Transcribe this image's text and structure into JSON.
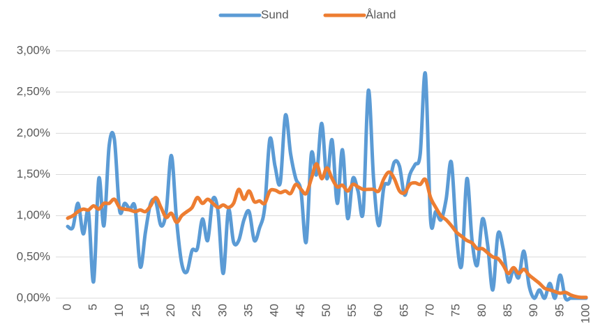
{
  "chart_data": {
    "type": "line",
    "x": [
      0,
      1,
      2,
      3,
      4,
      5,
      6,
      7,
      8,
      9,
      10,
      11,
      12,
      13,
      14,
      15,
      16,
      17,
      18,
      19,
      20,
      21,
      22,
      23,
      24,
      25,
      26,
      27,
      28,
      29,
      30,
      31,
      32,
      33,
      34,
      35,
      36,
      37,
      38,
      39,
      40,
      41,
      42,
      43,
      44,
      45,
      46,
      47,
      48,
      49,
      50,
      51,
      52,
      53,
      54,
      55,
      56,
      57,
      58,
      59,
      60,
      61,
      62,
      63,
      64,
      65,
      66,
      67,
      68,
      69,
      70,
      71,
      72,
      73,
      74,
      75,
      76,
      77,
      78,
      79,
      80,
      81,
      82,
      83,
      84,
      85,
      86,
      87,
      88,
      89,
      90,
      91,
      92,
      93,
      94,
      95,
      96,
      97,
      98,
      99,
      100
    ],
    "series": [
      {
        "name": "Sund",
        "color": "#5b9bd5",
        "values": [
          0.87,
          0.86,
          1.15,
          0.78,
          1.05,
          0.2,
          1.45,
          0.88,
          1.85,
          1.93,
          1.07,
          1.15,
          1.08,
          1.1,
          0.38,
          0.8,
          1.15,
          1.17,
          0.88,
          1.05,
          1.73,
          0.95,
          0.42,
          0.32,
          0.58,
          0.6,
          0.96,
          0.7,
          1.2,
          1.05,
          0.3,
          1.07,
          0.68,
          0.7,
          0.95,
          1.05,
          0.7,
          0.85,
          1.1,
          1.93,
          1.6,
          1.4,
          2.22,
          1.75,
          1.45,
          1.3,
          0.68,
          1.75,
          1.5,
          2.12,
          1.45,
          1.92,
          1.15,
          1.8,
          0.97,
          1.45,
          1.3,
          1.05,
          2.52,
          1.45,
          0.88,
          1.35,
          1.4,
          1.65,
          1.6,
          1.25,
          1.5,
          1.62,
          1.75,
          2.72,
          0.95,
          1.05,
          0.95,
          1.2,
          1.65,
          0.75,
          0.4,
          1.45,
          0.7,
          0.4,
          0.96,
          0.65,
          0.1,
          0.78,
          0.6,
          0.2,
          0.35,
          0.25,
          0.57,
          0.15,
          0.0,
          0.1,
          0.0,
          0.18,
          0.0,
          0.28,
          0.0,
          0.0,
          0.0,
          0.0,
          0.0
        ]
      },
      {
        "name": "Åland",
        "color": "#ed7d31",
        "values": [
          0.97,
          1.0,
          1.05,
          1.08,
          1.07,
          1.12,
          1.08,
          1.15,
          1.15,
          1.2,
          1.1,
          1.08,
          1.07,
          1.05,
          1.07,
          1.05,
          1.12,
          1.22,
          1.1,
          0.98,
          1.03,
          0.92,
          1.0,
          1.05,
          1.1,
          1.22,
          1.15,
          1.2,
          1.15,
          1.1,
          1.13,
          1.1,
          1.15,
          1.32,
          1.2,
          1.3,
          1.17,
          1.18,
          1.15,
          1.3,
          1.31,
          1.28,
          1.3,
          1.27,
          1.38,
          1.32,
          1.27,
          1.45,
          1.63,
          1.45,
          1.58,
          1.45,
          1.35,
          1.37,
          1.3,
          1.38,
          1.35,
          1.32,
          1.32,
          1.32,
          1.3,
          1.45,
          1.53,
          1.45,
          1.3,
          1.28,
          1.38,
          1.4,
          1.38,
          1.44,
          1.22,
          1.1,
          1.0,
          0.95,
          0.88,
          0.8,
          0.75,
          0.7,
          0.67,
          0.6,
          0.6,
          0.55,
          0.5,
          0.48,
          0.4,
          0.3,
          0.37,
          0.3,
          0.35,
          0.28,
          0.23,
          0.18,
          0.12,
          0.1,
          0.08,
          0.06,
          0.07,
          0.04,
          0.02,
          0.01,
          0.01
        ]
      }
    ],
    "xlim": [
      0,
      100
    ],
    "xticks": [
      0,
      5,
      10,
      15,
      20,
      25,
      30,
      35,
      40,
      45,
      50,
      55,
      60,
      65,
      70,
      75,
      80,
      85,
      90,
      95,
      100
    ],
    "ylim": [
      0,
      3
    ],
    "yticks": [
      {
        "value": 0,
        "label": "0,00%"
      },
      {
        "value": 0.5,
        "label": "0,50%"
      },
      {
        "value": 1,
        "label": "1,00%"
      },
      {
        "value": 1.5,
        "label": "1,50%"
      },
      {
        "value": 2,
        "label": "2,00%"
      },
      {
        "value": 2.5,
        "label": "2,50%"
      },
      {
        "value": 3,
        "label": "3,00%"
      }
    ],
    "grid": true,
    "legend": "top"
  }
}
